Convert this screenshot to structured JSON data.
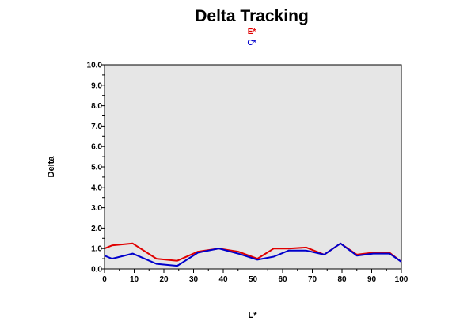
{
  "chart_data": {
    "type": "line",
    "title": "Delta Tracking",
    "xlabel": "L*",
    "ylabel": "Delta",
    "xlim": [
      0,
      100
    ],
    "ylim": [
      0,
      10
    ],
    "x_ticks": [
      "0",
      "10",
      "20",
      "30",
      "40",
      "50",
      "60",
      "70",
      "80",
      "90",
      "100"
    ],
    "y_ticks": [
      "0.0",
      "1.0",
      "2.0",
      "3.0",
      "4.0",
      "5.0",
      "6.0",
      "7.0",
      "8.0",
      "9.0",
      "10.0"
    ],
    "legend_position": "top-center",
    "plot_background": "#e6e6e6",
    "series": [
      {
        "name": "E*",
        "color": "#e00000",
        "x": [
          0,
          2.5,
          9.5,
          17.5,
          24.5,
          31.5,
          38.5,
          45,
          51.5,
          57,
          62,
          68,
          74,
          79.5,
          85,
          90.5,
          96,
          100
        ],
        "y": [
          1.0,
          1.15,
          1.25,
          0.5,
          0.4,
          0.85,
          1.0,
          0.85,
          0.5,
          1.0,
          1.0,
          1.05,
          0.7,
          1.25,
          0.7,
          0.8,
          0.8,
          0.35
        ]
      },
      {
        "name": "C*",
        "color": "#0000cc",
        "x": [
          0,
          2.5,
          9.5,
          17.5,
          24.5,
          31.5,
          38.5,
          45,
          51.5,
          57,
          62,
          68,
          74,
          79.5,
          85,
          90.5,
          96,
          100
        ],
        "y": [
          0.65,
          0.5,
          0.75,
          0.25,
          0.15,
          0.8,
          1.0,
          0.75,
          0.45,
          0.6,
          0.9,
          0.9,
          0.7,
          1.25,
          0.65,
          0.75,
          0.75,
          0.35
        ]
      }
    ]
  }
}
